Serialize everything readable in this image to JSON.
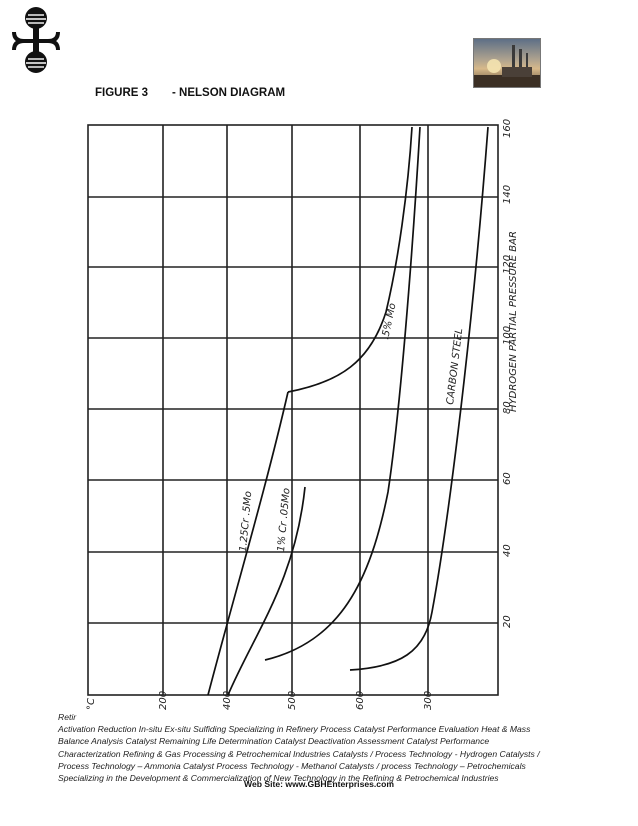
{
  "header": {
    "logo_icon": "gbh-logo-icon",
    "photo_icon": "refinery-photo-icon",
    "figure_label": "FIGURE 3",
    "figure_title": "- NELSON DIAGRAM"
  },
  "diagram": {
    "y_axis_label": "HYDROGEN PARTIAL PRESSURE  BAR",
    "y_ticks": [
      "20",
      "40",
      "60",
      "80",
      "100",
      "120",
      "140",
      "160"
    ],
    "x_ticks": [
      "°C",
      "200",
      "400",
      "500",
      "600",
      "300"
    ],
    "curve_labels": {
      "c1": "1.25Cr .5Mo",
      "c2": "1% Cr .05Mo",
      "c3": ".5% Mo",
      "c4": "CARBON STEEL"
    }
  },
  "footer": {
    "lines": [
      "Retir",
      " Activation   Reduction  In-situ  Ex-situ Sulfiding Specializing in Refinery Process Catalyst Performance Evaluation Heat & Mass",
      " Balance Analysis  Catalyst Remaining Life Determination  Catalyst Deactivation Assessment  Catalyst Performance",
      "Characterization  Refining  & Gas Processing &  Petrochemical Industries  Catalysts / Process Technology - Hydrogen  Catalysts /",
      "Process Technology – Ammonia  Catalyst Process Technology - Methanol  Catalysts / process Technology – Petrochemicals",
      "Specializing in the Development  & Commercialization of New Technology in the Refining &   Petrochemical Industries"
    ],
    "website": "Web Site: www.GBHEnterprises.com"
  }
}
